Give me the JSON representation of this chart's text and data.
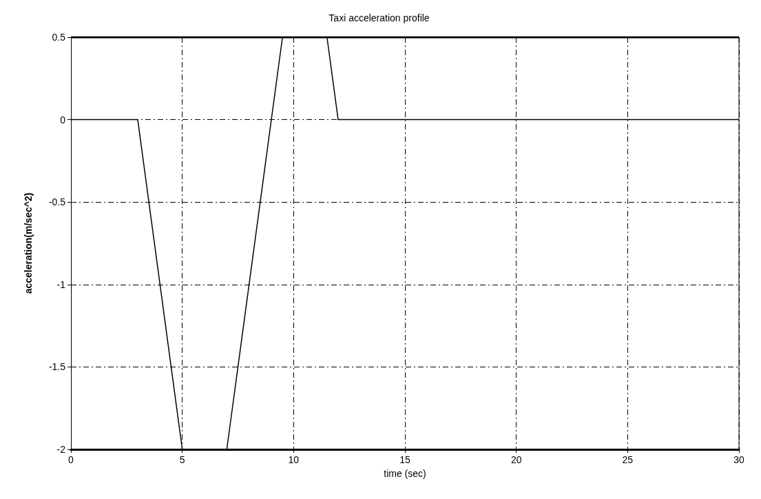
{
  "chart_data": {
    "type": "line",
    "title": "Taxi acceleration profile",
    "xlabel": "time (sec)",
    "ylabel": "acceleration(m/sec^2)",
    "x": [
      0,
      3,
      5,
      7,
      9.5,
      11.5,
      12,
      30
    ],
    "series": [
      {
        "color": "#000000",
        "values": [
          0,
          0,
          -2,
          -2,
          0.5,
          0.5,
          0,
          0
        ]
      }
    ],
    "xlim": [
      0,
      30
    ],
    "xticks": [
      0,
      5,
      10,
      15,
      20,
      25,
      30
    ],
    "ylim": [
      -2,
      0.5
    ],
    "yticks": [
      -2,
      -1.5,
      -1,
      -0.5,
      0,
      0.5
    ],
    "grid": true,
    "marker": "none",
    "line_style": "solid"
  }
}
